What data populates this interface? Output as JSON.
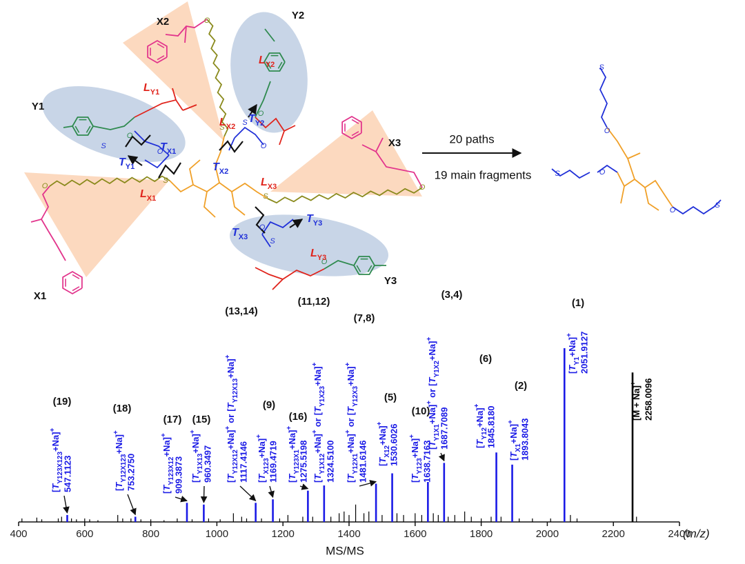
{
  "diagram": {
    "units": [
      "X1",
      "X2",
      "X3",
      "Y1",
      "Y2",
      "Y3"
    ],
    "L": [
      {
        "sym": "L",
        "sub": "Y1"
      },
      {
        "sym": "L",
        "sub": "Y2"
      },
      {
        "sym": "L",
        "sub": "X2"
      },
      {
        "sym": "L",
        "sub": "X3"
      },
      {
        "sym": "L",
        "sub": "X1"
      },
      {
        "sym": "L",
        "sub": "Y3"
      }
    ],
    "T": [
      {
        "sym": "T",
        "sub": "X1"
      },
      {
        "sym": "T",
        "sub": "Y1"
      },
      {
        "sym": "T",
        "sub": "X2"
      },
      {
        "sym": "T",
        "sub": "Y2"
      },
      {
        "sym": "T",
        "sub": "X3"
      },
      {
        "sym": "T",
        "sub": "Y3"
      }
    ],
    "atoms": [
      "S",
      "O"
    ],
    "arrow_top": "20 paths",
    "arrow_bottom": "19 main fragments"
  },
  "chart_data": {
    "type": "spectrum",
    "xlabel": "MS/MS",
    "xunit": "(m/z)",
    "xlim": [
      400,
      2400
    ],
    "xticks": [
      400,
      600,
      800,
      1000,
      1200,
      1400,
      1600,
      1800,
      2000,
      2200,
      2400
    ],
    "peaks": {
      "x": [
        547.1123,
        753.275,
        909.3873,
        960.3497,
        1117.4146,
        1169.4719,
        1275.5198,
        1324.51,
        1481.6146,
        1530.6026,
        1638.7163,
        1687.7089,
        1845.818,
        1893.8043,
        2051.9127,
        2258.0096
      ],
      "x_labels": [
        "547.1123",
        "753.2750",
        "909.3873",
        "960.3497",
        "1117.4146",
        "1169.4719",
        "1275.5198",
        "1324.5100",
        "1481.6146",
        "1530.6026",
        "1638.7163",
        "1687.7089",
        "1845.8180",
        "1893.8043",
        "2051.9127",
        "2258.0096"
      ],
      "values": [
        4,
        3,
        11,
        10,
        11,
        13,
        18,
        21,
        22,
        28,
        23,
        34,
        40,
        33,
        100,
        86
      ],
      "numbers": [
        "(19)",
        "(18)",
        "(17)",
        "(15)",
        "(13,14)",
        "(9)",
        "(16)",
        "(11,12)",
        "(7,8)",
        "(5)",
        "(10)",
        "(3,4)",
        "(6)",
        "(2)",
        "(1)",
        null
      ],
      "colors": [
        "#1a1ae6",
        "#1a1ae6",
        "#1a1ae6",
        "#1a1ae6",
        "#1a1ae6",
        "#1a1ae6",
        "#1a1ae6",
        "#1a1ae6",
        "#1a1ae6",
        "#1a1ae6",
        "#1a1ae6",
        "#1a1ae6",
        "#1a1ae6",
        "#1a1ae6",
        "#1a1ae6",
        "#000000"
      ],
      "ions": [
        [
          {
            "pre": "[",
            "it": "T",
            "sub": "Y123X123",
            "post": "+Na]",
            "sup": "+"
          }
        ],
        [
          {
            "pre": "[",
            "it": "T",
            "sub": "Y12X123",
            "post": "+Na]",
            "sup": "+"
          }
        ],
        [
          {
            "pre": "[",
            "it": "T",
            "sub": "Y123X12",
            "post": "+Na]",
            "sup": "+"
          }
        ],
        [
          {
            "pre": "[",
            "it": "T",
            "sub": "Y1X13",
            "post": "+Na]",
            "sup": "+"
          }
        ],
        [
          {
            "pre": "[",
            "it": "T",
            "sub": "Y12X12",
            "post": "+Na]",
            "sup": "+"
          },
          "or",
          {
            "pre": "[",
            "it": "T",
            "sub": "Y12X13",
            "post": "+Na]",
            "sup": "+"
          }
        ],
        [
          {
            "pre": "[",
            "it": "T",
            "sub": "X123",
            "post": "+Na]",
            "sup": "+"
          }
        ],
        [
          {
            "pre": "[",
            "it": "T",
            "sub": "Y123X1",
            "post": "+Na]",
            "sup": "+"
          }
        ],
        [
          {
            "pre": "[",
            "it": "T",
            "sub": "Y1X12",
            "post": "+Na]",
            "sup": "+"
          },
          "or",
          {
            "pre": "[",
            "it": "T",
            "sub": "Y1X23",
            "post": "+Na]",
            "sup": "+"
          }
        ],
        [
          {
            "pre": "[",
            "it": "T",
            "sub": "Y12X1",
            "post": "+Na]",
            "sup": "+"
          },
          "or",
          {
            "pre": "[",
            "it": "T",
            "sub": "Y12X3",
            "post": "+Na]",
            "sup": "+"
          }
        ],
        [
          {
            "pre": "[",
            "it": "T",
            "sub": "X12",
            "post": "+Na]",
            "sup": "+"
          }
        ],
        [
          {
            "pre": "[",
            "it": "T",
            "sub": "Y123",
            "post": "+Na]",
            "sup": "+"
          }
        ],
        [
          {
            "pre": "[",
            "it": "T",
            "sub": "Y1X1",
            "post": "+Na]",
            "sup": "+"
          },
          "or",
          {
            "pre": "[",
            "it": "T",
            "sub": "Y1X2",
            "post": "+Na]",
            "sup": "+"
          }
        ],
        [
          {
            "pre": "[",
            "it": "T",
            "sub": "Y12",
            "post": "+Na]",
            "sup": "+"
          }
        ],
        [
          {
            "pre": "[",
            "it": "T",
            "sub": "X1",
            "post": "+Na]",
            "sup": "+"
          }
        ],
        [
          {
            "pre": "[",
            "it": "T",
            "sub": "Y1",
            "post": "+Na]",
            "sup": "+"
          }
        ],
        [
          {
            "pre": "[M + Na]",
            "sup": "+"
          }
        ]
      ]
    },
    "minor": {
      "color": "#000000",
      "x": [
        410,
        455,
        470,
        520,
        530,
        560,
        575,
        600,
        615,
        640,
        700,
        715,
        740,
        770,
        800,
        840,
        880,
        925,
        975,
        1010,
        1050,
        1075,
        1090,
        1135,
        1190,
        1215,
        1260,
        1290,
        1345,
        1370,
        1385,
        1400,
        1420,
        1445,
        1460,
        1500,
        1545,
        1565,
        1600,
        1620,
        1655,
        1670,
        1700,
        1720,
        1750,
        1770,
        1800,
        1830,
        1860,
        1915,
        1955,
        2010,
        2070,
        2090,
        2270
      ],
      "values": [
        2,
        2.5,
        1.5,
        2,
        3,
        2,
        1.5,
        2,
        1.5,
        1,
        4,
        2,
        2,
        1.5,
        1.5,
        1,
        2,
        1.5,
        2,
        1.5,
        5,
        3,
        2,
        2,
        2,
        4,
        3,
        3,
        3,
        5,
        6,
        4,
        10,
        5,
        6,
        4,
        5,
        4,
        5,
        4,
        5,
        4,
        3,
        4,
        6,
        3,
        2,
        3,
        3,
        2,
        2,
        2,
        4,
        2,
        3
      ]
    }
  }
}
